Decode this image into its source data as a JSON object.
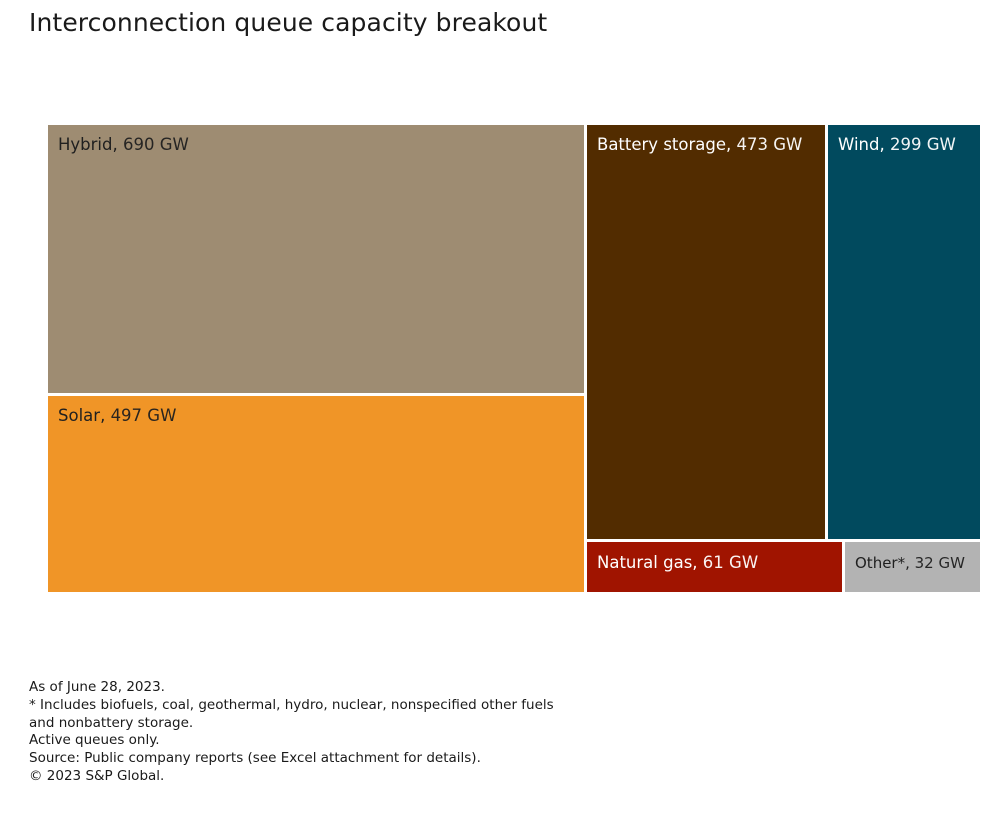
{
  "title": "Interconnection queue capacity breakout",
  "chart_data": {
    "type": "treemap",
    "title": "Interconnection queue capacity breakout",
    "unit": "GW",
    "items": [
      {
        "id": "hybrid",
        "name": "Hybrid",
        "value": 690,
        "value_label": "690 GW",
        "color": "#9e8c72",
        "text_color": "#1f1f1f"
      },
      {
        "id": "solar",
        "name": "Solar",
        "value": 497,
        "value_label": "497 GW",
        "color": "#f09527",
        "text_color": "#1f1f1f"
      },
      {
        "id": "battery",
        "name": "Battery storage",
        "value": 473,
        "value_label": "473 GW",
        "color": "#522c00",
        "text_color": "#ffffff"
      },
      {
        "id": "wind",
        "name": "Wind",
        "value": 299,
        "value_label": "299 GW",
        "color": "#014a5e",
        "text_color": "#ffffff"
      },
      {
        "id": "gas",
        "name": "Natural gas",
        "value": 61,
        "value_label": "61 GW",
        "color": "#a01400",
        "text_color": "#ffffff"
      },
      {
        "id": "other",
        "name": "Other*",
        "value": 32,
        "value_label": "32 GW",
        "color": "#b3b3b3",
        "text_color": "#1f1f1f"
      }
    ]
  },
  "footnotes": [
    "As of June 28, 2023.",
    "* Includes biofuels, coal, geothermal, hydro, nuclear, nonspecified other fuels",
    "and nonbattery storage.",
    "Active queues only.",
    "Source: Public company reports (see Excel attachment for details).",
    "© 2023 S&P Global."
  ]
}
